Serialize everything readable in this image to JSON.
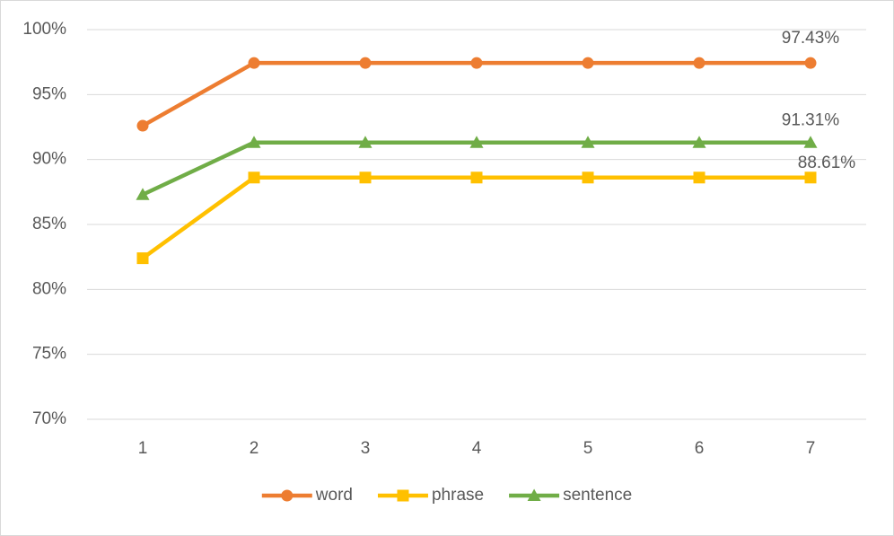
{
  "chart_data": {
    "type": "line",
    "categories": [
      "1",
      "2",
      "3",
      "4",
      "5",
      "6",
      "7"
    ],
    "series": [
      {
        "name": "word",
        "color": "#ed7d31",
        "marker": "circle",
        "values": [
          92.6,
          97.43,
          97.43,
          97.43,
          97.43,
          97.43,
          97.43
        ],
        "value_labels": [
          null,
          null,
          null,
          null,
          null,
          null,
          "97.43%"
        ]
      },
      {
        "name": "phrase",
        "color": "#ffc000",
        "marker": "square",
        "values": [
          82.4,
          88.61,
          88.61,
          88.61,
          88.61,
          88.61,
          88.61
        ],
        "value_labels": [
          null,
          null,
          null,
          null,
          null,
          null,
          "88.61%"
        ]
      },
      {
        "name": "sentence",
        "color": "#70ad47",
        "marker": "triangle",
        "values": [
          87.3,
          91.31,
          91.31,
          91.31,
          91.31,
          91.31,
          91.31
        ],
        "value_labels": [
          null,
          null,
          null,
          null,
          null,
          null,
          "91.31%"
        ]
      }
    ],
    "ylim": [
      70,
      100
    ],
    "yticks": [
      {
        "value": 70,
        "label": "70%"
      },
      {
        "value": 75,
        "label": "75%"
      },
      {
        "value": 80,
        "label": "80%"
      },
      {
        "value": 85,
        "label": "85%"
      },
      {
        "value": 90,
        "label": "90%"
      },
      {
        "value": 95,
        "label": "95%"
      },
      {
        "value": 100,
        "label": "100%"
      }
    ],
    "grid": true,
    "legend": "bottom"
  }
}
